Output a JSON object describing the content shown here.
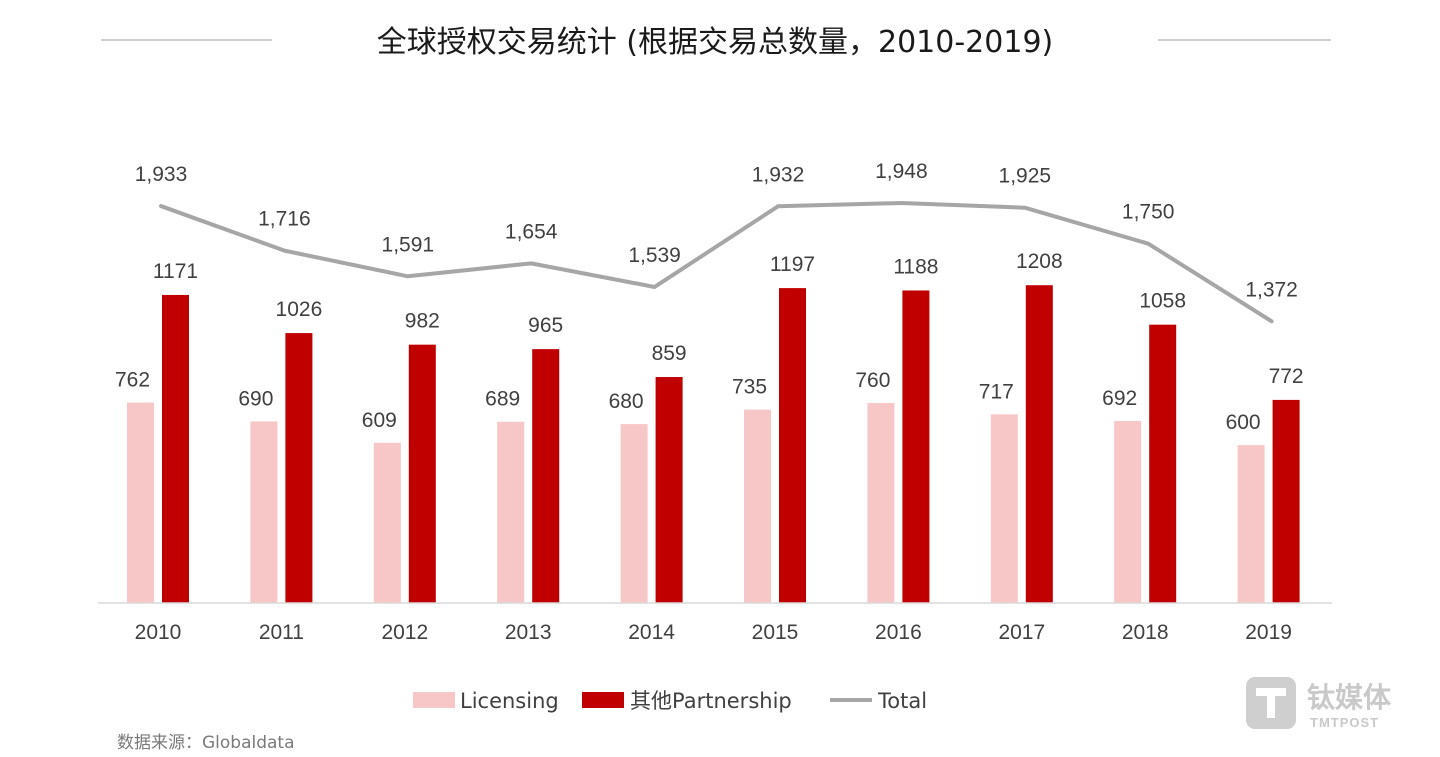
{
  "title": "全球授权交易统计 (根据交易总数量，2010-2019)",
  "source": "数据来源：Globaldata",
  "watermark": {
    "name": "钛媒体",
    "sub": "TMTPOST"
  },
  "colors": {
    "licensing": "#f7c6c6",
    "partnership": "#c00000",
    "total": "#a6a6a6",
    "axis": "#d9d9d9",
    "rule": "#bfbfbf"
  },
  "chart_data": {
    "type": "bar",
    "title": "全球授权交易统计 (根据交易总数量，2010-2019)",
    "categories": [
      "2010",
      "2011",
      "2012",
      "2013",
      "2014",
      "2015",
      "2016",
      "2017",
      "2018",
      "2019"
    ],
    "series": [
      {
        "name": "Licensing",
        "type": "bar",
        "values": [
          762,
          690,
          609,
          689,
          680,
          735,
          760,
          717,
          692,
          600
        ],
        "labels": [
          "762",
          "690",
          "609",
          "689",
          "680",
          "735",
          "760",
          "717",
          "692",
          "600"
        ]
      },
      {
        "name": "其他Partnership",
        "type": "bar",
        "values": [
          1171,
          1026,
          982,
          965,
          859,
          1197,
          1188,
          1208,
          1058,
          772
        ],
        "labels": [
          "1171",
          "1026",
          "982",
          "965",
          "859",
          "1197",
          "1188",
          "1208",
          "1058",
          "772"
        ]
      },
      {
        "name": "Total",
        "type": "line",
        "values": [
          1933,
          1716,
          1591,
          1654,
          1539,
          1932,
          1948,
          1925,
          1750,
          1372
        ],
        "labels": [
          "1,933",
          "1,716",
          "1,591",
          "1,654",
          "1,539",
          "1,932",
          "1,948",
          "1,925",
          "1,750",
          "1,372"
        ]
      }
    ],
    "legend": {
      "position": "bottom",
      "items": [
        "Licensing",
        "其他Partnership",
        "Total"
      ]
    },
    "grid": false,
    "bar_axis_range": [
      0,
      1300
    ],
    "line_axis_range": [
      0,
      3600
    ]
  }
}
